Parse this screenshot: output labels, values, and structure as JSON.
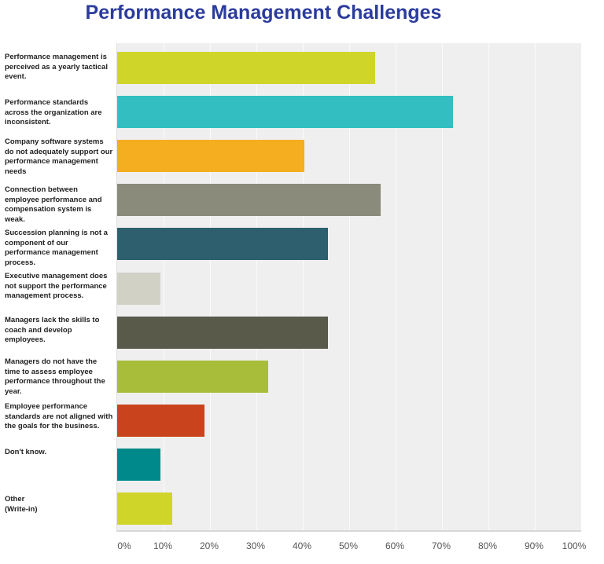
{
  "chart_data": {
    "type": "bar",
    "orientation": "horizontal",
    "title": "Performance Management Challenges",
    "xlabel": "",
    "ylabel": "",
    "xlim": [
      0,
      100
    ],
    "grid": true,
    "tick_labels": [
      "0%",
      "10%",
      "20%",
      "30%",
      "40%",
      "50%",
      "60%",
      "70%",
      "80%",
      "90%",
      "100%"
    ],
    "categories": [
      "Performance management is perceived as a yearly tactical event.",
      "Performance standards across the organization are inconsistent.",
      "Company software systems do not adequately support our performance management needs",
      "Connection between employee performance and compensation system is weak.",
      "Succession planning is not a component of our performance management process.",
      "Executive management does not support the performance management process.",
      "Managers lack the skills to coach and develop employees.",
      "Managers do not have the time to assess employee performance throughout the year.",
      "Employee performance standards are not aligned with the goals for the business.",
      "Don't know.",
      "Other (Write-in)"
    ],
    "values": [
      55.6,
      72.4,
      40.3,
      56.8,
      45.4,
      9.3,
      45.4,
      32.5,
      18.8,
      9.3,
      11.9
    ],
    "colors": [
      "#d0d52a",
      "#33bfc1",
      "#f5ae20",
      "#8a8b7a",
      "#2d5f6e",
      "#d2d1c6",
      "#5a5a4a",
      "#a8bd3a",
      "#c9441c",
      "#00898a",
      "#d0d52a"
    ]
  }
}
